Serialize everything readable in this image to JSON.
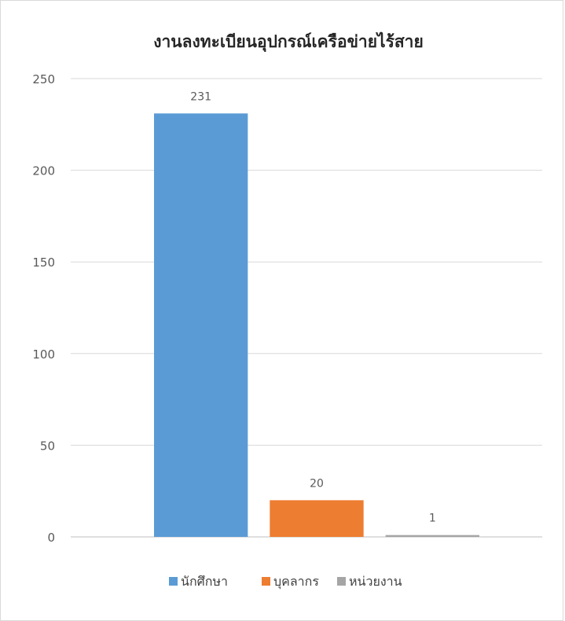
{
  "chart_data": {
    "type": "bar",
    "title": "งานลงทะเบียนอุปกรณ์เครือข่ายไร้สาย",
    "xlabel": "",
    "ylabel": "",
    "ylim": [
      0,
      250
    ],
    "yticks": [
      0,
      50,
      100,
      150,
      200,
      250
    ],
    "grid": true,
    "legend_position": "bottom",
    "series": [
      {
        "name": "นักศึกษา",
        "values": [
          231
        ],
        "color": "#5b9bd5"
      },
      {
        "name": "บุคลากร",
        "values": [
          20
        ],
        "color": "#ed7d31"
      },
      {
        "name": "หน่วยงาน",
        "values": [
          1
        ],
        "color": "#a5a5a5"
      }
    ]
  }
}
